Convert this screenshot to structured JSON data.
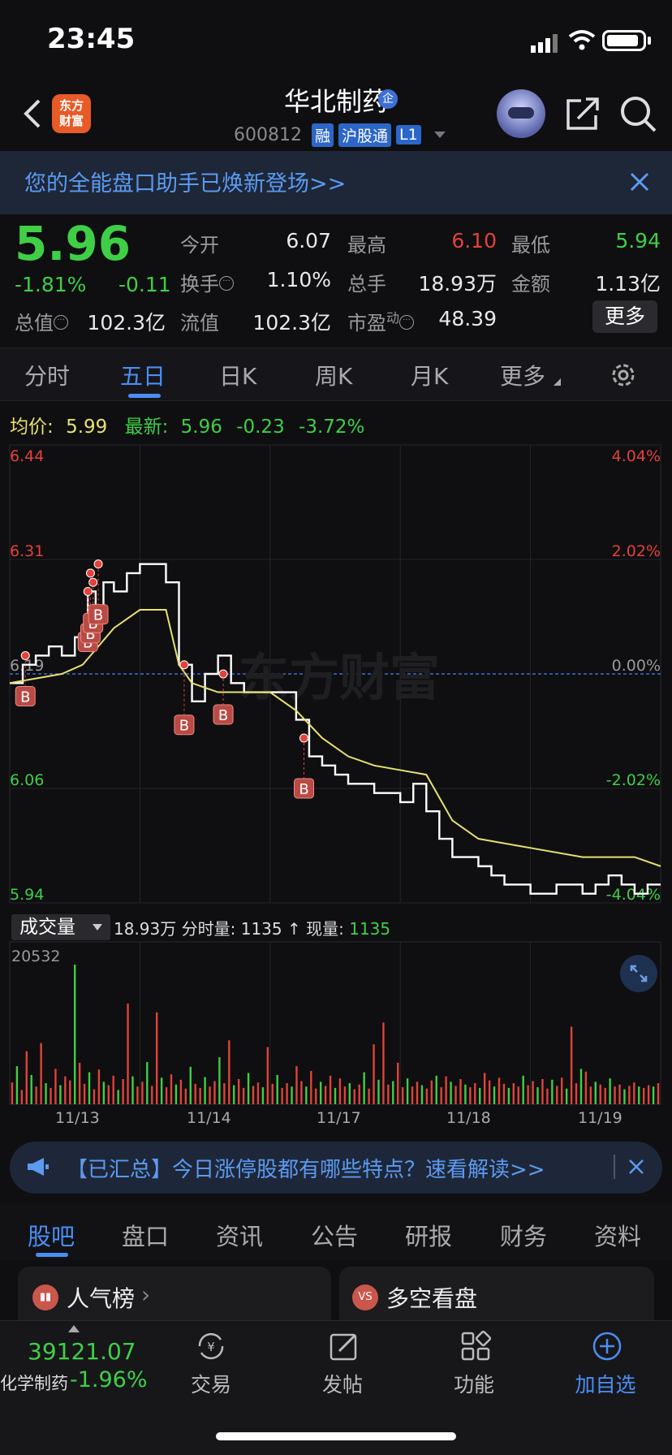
{
  "status": {
    "time": "23:45"
  },
  "header": {
    "logo_line1": "东方",
    "logo_line2": "财富",
    "stock_name": "华北制药",
    "ent_badge": "企",
    "code": "600812",
    "tags": [
      "融",
      "沪股通",
      "L1"
    ]
  },
  "banner": {
    "text": "您的全能盘口助手已焕新登场>>"
  },
  "quote": {
    "price": "5.96",
    "change_pct": "-1.81%",
    "change": "-0.11",
    "open_label": "今开",
    "open": "6.07",
    "high_label": "最高",
    "high": "6.10",
    "low_label": "最低",
    "low": "5.94",
    "turnover_label": "换手",
    "turnover": "1.10%",
    "volume_label": "总手",
    "volume": "18.93万",
    "amount_label": "金额",
    "amount": "1.13亿",
    "mktcap_label": "总值",
    "mktcap": "102.3亿",
    "float_label": "流值",
    "float_cap": "102.3亿",
    "pe_label": "市盈",
    "pe_sup": "动",
    "pe": "48.39",
    "more": "更多"
  },
  "chart_tabs": [
    "分时",
    "五日",
    "日K",
    "周K",
    "月K",
    "更多"
  ],
  "active_chart_tab": "五日",
  "chart_info": {
    "avg_label": "均价:",
    "avg_value": "5.99",
    "latest_label": "最新:",
    "latest_value": "5.96",
    "latest_change": "-0.23",
    "latest_pct": "-3.72%"
  },
  "chart_data": {
    "type": "line",
    "title": "",
    "y_price_ticks": [
      "6.44",
      "6.31",
      "6.19",
      "6.06",
      "5.94"
    ],
    "y_pct_ticks": [
      "4.04%",
      "2.02%",
      "0.00%",
      "-2.02%",
      "-4.04%"
    ],
    "ylim": [
      5.94,
      6.44
    ],
    "x_dates": [
      "11/13",
      "11/14",
      "11/17",
      "11/18",
      "11/19"
    ],
    "series": [
      {
        "name": "",
        "color": "#ffffff",
        "x": [
          0,
          5,
          10,
          15,
          20,
          25,
          28,
          30,
          33,
          36,
          40,
          45,
          50,
          55,
          60,
          65,
          70,
          75,
          80,
          85,
          90,
          95,
          100,
          105,
          110,
          115,
          120,
          125,
          130,
          135,
          140,
          145,
          150,
          155,
          160,
          165,
          170,
          175,
          180,
          185,
          190,
          195,
          200,
          205,
          210,
          215,
          220,
          225,
          230,
          235,
          240,
          245,
          250
        ],
        "values": [
          6.18,
          6.2,
          6.21,
          6.22,
          6.21,
          6.23,
          6.24,
          6.28,
          6.26,
          6.29,
          6.28,
          6.3,
          6.31,
          6.31,
          6.29,
          6.2,
          6.16,
          6.19,
          6.21,
          6.18,
          6.17,
          6.17,
          6.17,
          6.17,
          6.14,
          6.1,
          6.09,
          6.08,
          6.07,
          6.07,
          6.06,
          6.06,
          6.05,
          6.07,
          6.04,
          6.01,
          5.99,
          5.99,
          5.98,
          5.97,
          5.96,
          5.96,
          5.95,
          5.95,
          5.96,
          5.96,
          5.95,
          5.96,
          5.97,
          5.96,
          5.95,
          5.96,
          5.96
        ]
      },
      {
        "name": "",
        "color": "#e8e070",
        "x": [
          0,
          20,
          28,
          40,
          50,
          60,
          65,
          70,
          80,
          100,
          110,
          120,
          130,
          140,
          160,
          170,
          180,
          200,
          220,
          240,
          250
        ],
        "values": [
          6.18,
          6.19,
          6.2,
          6.24,
          6.26,
          6.26,
          6.2,
          6.18,
          6.17,
          6.17,
          6.15,
          6.12,
          6.1,
          6.09,
          6.08,
          6.03,
          6.01,
          6.0,
          5.99,
          5.99,
          5.98
        ]
      }
    ],
    "buy_markers": [
      {
        "x": 6,
        "y": 6.21,
        "label": "B"
      },
      {
        "x": 30,
        "y": 6.28,
        "label": "B"
      },
      {
        "x": 31,
        "y": 6.3,
        "label": "B"
      },
      {
        "x": 32,
        "y": 6.29,
        "label": "B"
      },
      {
        "x": 34,
        "y": 6.31,
        "label": "B"
      },
      {
        "x": 67,
        "y": 6.2,
        "label": "B"
      },
      {
        "x": 82,
        "y": 6.19,
        "label": "B"
      },
      {
        "x": 113,
        "y": 6.12,
        "label": "B"
      }
    ],
    "watermark": "东方财富",
    "volume": {
      "max_label": "20532",
      "bars": [
        3200,
        5600,
        2100,
        7800,
        4300,
        2600,
        9000,
        3100,
        2400,
        5200,
        2800,
        4100,
        3500,
        20532,
        6100,
        3000,
        4700,
        2200,
        5100,
        3300,
        2800,
        4200,
        2100,
        3700,
        14800,
        4100,
        2600,
        3300,
        6200,
        2700,
        13500,
        3900,
        2500,
        4400,
        2900,
        3600,
        2300,
        5500,
        3000,
        2400,
        4000,
        2600,
        3400,
        6900,
        3100,
        9400,
        2800,
        3700,
        2400,
        4600,
        2700,
        3200,
        2500,
        8400,
        3000,
        4300,
        2400,
        3100,
        2600,
        5600,
        3400,
        2600,
        4900,
        2300,
        3300,
        2700,
        4200,
        2400,
        3800,
        2600,
        3100,
        2200,
        2900,
        4700,
        2300,
        8800,
        3600,
        12000,
        2900,
        3400,
        6100,
        2500,
        3800,
        2600,
        3300,
        2800,
        2300,
        3500,
        4200,
        2500,
        4100,
        3300,
        2700,
        3700,
        2900,
        2500,
        3100,
        2400,
        4600,
        3500,
        2600,
        3900,
        3000,
        2400,
        3100,
        2600,
        4200,
        2800,
        3400,
        2500,
        3700,
        2300,
        3600,
        2700,
        3900,
        2300,
        11400,
        3100,
        5200,
        4800,
        2600,
        3300,
        2900,
        2400,
        3800,
        2600,
        2900,
        2200,
        2700,
        3200,
        2600,
        2400,
        2800,
        2600,
        3100
      ]
    }
  },
  "vol_panel": {
    "selector": "成交量",
    "total": "18.93万",
    "min_label": "分时量:",
    "min_value": "1135",
    "arrow": "↑",
    "cur_label": "现量:",
    "cur_value": "1135"
  },
  "notice": {
    "text": "【已汇总】今日涨停股都有哪些特点？速看解读>>"
  },
  "bottom_tabs": [
    "股吧",
    "盘口",
    "资讯",
    "公告",
    "研报",
    "财务",
    "资料"
  ],
  "active_bottom_tab": "股吧",
  "cards": [
    {
      "title": "人气榜",
      "icon": "bar-chart-icon"
    },
    {
      "title": "多空看盘",
      "icon": "vs-icon"
    }
  ],
  "bottom_nav": {
    "index_value": "39121.07",
    "index_name": "化学制药",
    "index_pct": "-1.96%",
    "trade": "交易",
    "post": "发帖",
    "func": "功能",
    "add": "加自选"
  },
  "colors": {
    "up": "#e3423b",
    "down": "#3fcf47",
    "accent": "#4a8ef5",
    "avg_line": "#e8e070"
  }
}
